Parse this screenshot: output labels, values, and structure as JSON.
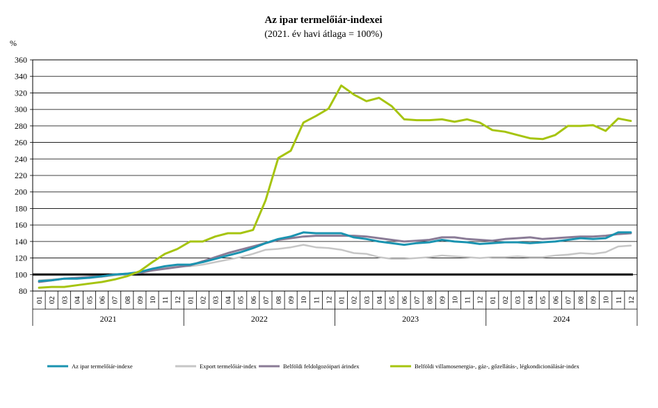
{
  "chart_data": {
    "type": "line",
    "title": "Az ipar termelőiár-indexei",
    "subtitle": "(2021. év havi átlaga = 100%)",
    "ylabel": "%",
    "ylim": [
      80,
      360
    ],
    "yticks": [
      80,
      100,
      120,
      140,
      160,
      180,
      200,
      220,
      240,
      260,
      280,
      300,
      320,
      340,
      360
    ],
    "reference_line": 100,
    "grid": true,
    "legend_position": "bottom",
    "years": [
      "2021",
      "2022",
      "2023",
      "2024"
    ],
    "months": [
      "01",
      "02",
      "03",
      "04",
      "05",
      "06",
      "07",
      "08",
      "09",
      "10",
      "11",
      "12"
    ],
    "series": [
      {
        "name": "Az ipar termelőiár-indexe",
        "color": "#1a93b0",
        "width": 3,
        "values": [
          92,
          93,
          95,
          95,
          96,
          98,
          100,
          101,
          103,
          107,
          110,
          112,
          112,
          115,
          119,
          123,
          127,
          132,
          138,
          143,
          146,
          151,
          150,
          150,
          150,
          145,
          143,
          140,
          138,
          136,
          138,
          139,
          142,
          140,
          139,
          137,
          138,
          139,
          139,
          138,
          139,
          140,
          142,
          144,
          143,
          144,
          151,
          151
        ]
      },
      {
        "name": "Export termelőiár-index",
        "color": "#c6c6c6",
        "width": 2.5,
        "values": [
          93,
          94,
          95,
          95,
          96,
          97,
          99,
          100,
          102,
          106,
          108,
          110,
          110,
          112,
          115,
          118,
          121,
          125,
          130,
          131,
          133,
          136,
          133,
          132,
          130,
          126,
          125,
          121,
          119,
          119,
          120,
          121,
          123,
          122,
          121,
          120,
          121,
          121,
          122,
          121,
          121,
          123,
          124,
          126,
          125,
          127,
          134,
          135
        ]
      },
      {
        "name": "Belföldi feldolgozóipari árindex",
        "color": "#8a7b96",
        "width": 3,
        "values": [
          91,
          93,
          95,
          96,
          97,
          98,
          100,
          101,
          102,
          105,
          107,
          109,
          111,
          116,
          121,
          126,
          130,
          134,
          138,
          142,
          144,
          146,
          147,
          147,
          147,
          147,
          146,
          144,
          142,
          140,
          141,
          142,
          145,
          145,
          143,
          142,
          141,
          143,
          144,
          145,
          143,
          144,
          145,
          146,
          146,
          147,
          149,
          150
        ]
      },
      {
        "name": "Belföldi villamosenergia-, gáz-, gőzellátás-, légkondicionálásár-index",
        "color": "#a6c40f",
        "width": 3,
        "values": [
          84,
          85,
          85,
          87,
          89,
          91,
          94,
          98,
          104,
          115,
          125,
          131,
          140,
          140,
          146,
          150,
          150,
          154,
          190,
          241,
          250,
          284,
          292,
          301,
          329,
          318,
          310,
          314,
          304,
          288,
          287,
          287,
          288,
          285,
          288,
          284,
          275,
          273,
          269,
          265,
          264,
          269,
          280,
          280,
          281,
          274,
          289,
          286
        ]
      }
    ]
  }
}
